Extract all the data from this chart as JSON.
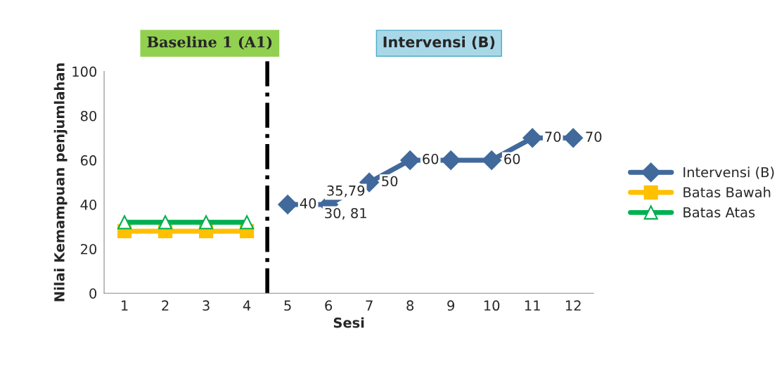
{
  "chart_data": {
    "type": "line",
    "xlabel": "Sesi",
    "ylabel": "Nilai Kemampuan penjumlahan",
    "xlim": [
      0.5,
      12.5
    ],
    "xticks": [
      1,
      2,
      3,
      4,
      5,
      6,
      7,
      8,
      9,
      10,
      11,
      12
    ],
    "ylim": [
      0,
      100
    ],
    "yticks": [
      0,
      20,
      40,
      60,
      80,
      100
    ],
    "grid": false,
    "legend": "right",
    "series": [
      {
        "name": "Intervensi (B)",
        "color": "#41699c",
        "marker": "diamond",
        "x": [
          5,
          6,
          7,
          8,
          9,
          10,
          11,
          12
        ],
        "values": [
          40,
          40,
          50,
          60,
          60,
          60,
          70,
          70
        ],
        "value_labels": [
          "40",
          null,
          "50",
          "60",
          null,
          "60",
          "70",
          "70"
        ]
      },
      {
        "name": "Batas Bawah",
        "color": "#ffc000",
        "marker": "square",
        "x": [
          1,
          2,
          3,
          4
        ],
        "values": [
          28,
          28,
          28,
          28
        ]
      },
      {
        "name": "Batas Atas",
        "color": "#00b050",
        "marker": "triangle",
        "x": [
          1,
          2,
          3,
          4
        ],
        "values": [
          32,
          32,
          32,
          32
        ]
      }
    ],
    "ref_lines": [
      {
        "axis": "x",
        "value": 4.5,
        "color": "#000000",
        "line_style": "dashdot"
      }
    ],
    "annotations": [
      "Baseline 1 (A1)",
      "Intervensi (B)",
      "35,79",
      "30, 81"
    ]
  }
}
